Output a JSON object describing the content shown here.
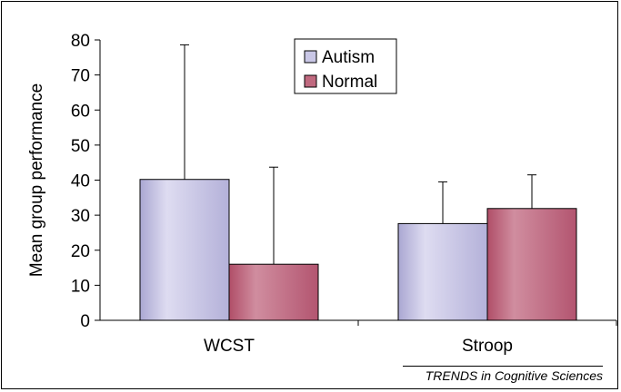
{
  "chart_data": {
    "type": "bar",
    "ylabel": "Mean group performance",
    "ylim": [
      0,
      80
    ],
    "yticks": [
      0,
      10,
      20,
      30,
      40,
      50,
      60,
      70,
      80
    ],
    "categories": [
      "WCST",
      "Stroop"
    ],
    "series": [
      {
        "name": "Autism",
        "values": [
          40.2,
          27.6
        ],
        "error_upper": [
          78.6,
          39.5
        ],
        "color": "#c9c7e6"
      },
      {
        "name": "Normal",
        "values": [
          16.0,
          31.9
        ],
        "error_upper": [
          43.7,
          41.5
        ],
        "color": "#c0697f"
      }
    ],
    "grid": false,
    "legend_placement": "top-center"
  },
  "source": "TRENDS in Cognitive Sciences"
}
